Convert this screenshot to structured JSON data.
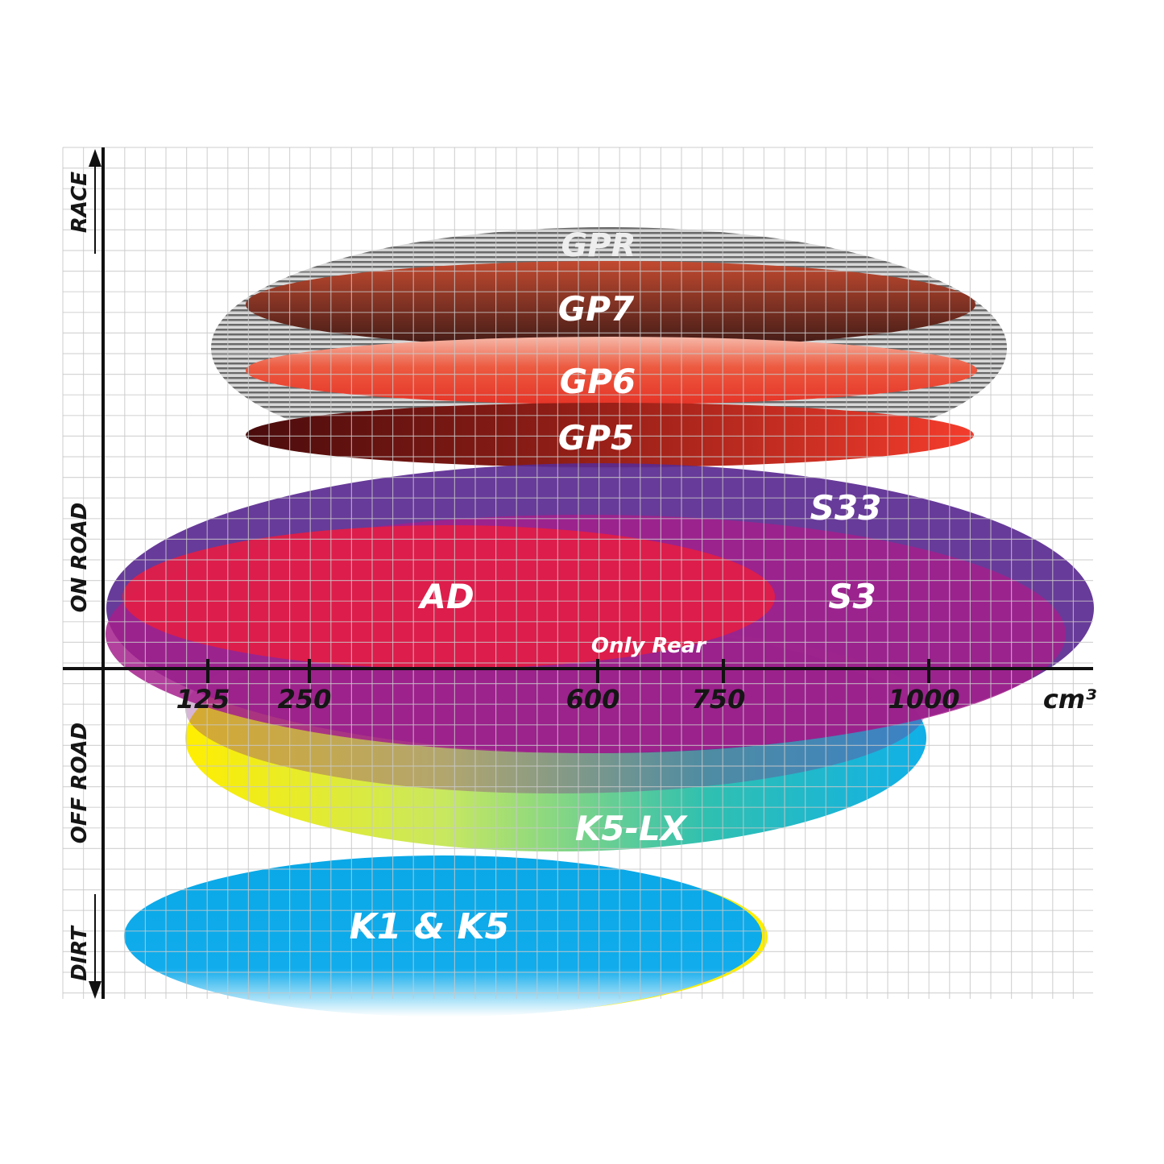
{
  "chart_data": {
    "type": "diagram-ellipses",
    "x_axis": {
      "unit": "cm³",
      "ticks": [
        {
          "value": 125,
          "label": "125"
        },
        {
          "value": 250,
          "label": "250"
        },
        {
          "value": 600,
          "label": "600"
        },
        {
          "value": 750,
          "label": "750"
        },
        {
          "value": 1000,
          "label": "1000"
        }
      ]
    },
    "y_axis": {
      "categories": [
        "RACE",
        "ON ROAD",
        "OFF ROAD",
        "DIRT"
      ]
    },
    "grid": true,
    "series": [
      {
        "name": "GPR",
        "color": "#8a8a8a"
      },
      {
        "name": "GP7",
        "color": "#8a3322"
      },
      {
        "name": "GP6",
        "color": "#e8402c"
      },
      {
        "name": "GP5",
        "color": "#b02018"
      },
      {
        "name": "S33",
        "color": "#5a2a90"
      },
      {
        "name": "S3",
        "color": "#a4208c"
      },
      {
        "name": "AD",
        "color": "#e01e48"
      },
      {
        "name": "Only Rear",
        "color": "#8a2a8a"
      },
      {
        "name": "K5-LX",
        "color": "#20b8c8"
      },
      {
        "name": "K1 & K5",
        "color": "#0aa8e6"
      }
    ]
  }
}
